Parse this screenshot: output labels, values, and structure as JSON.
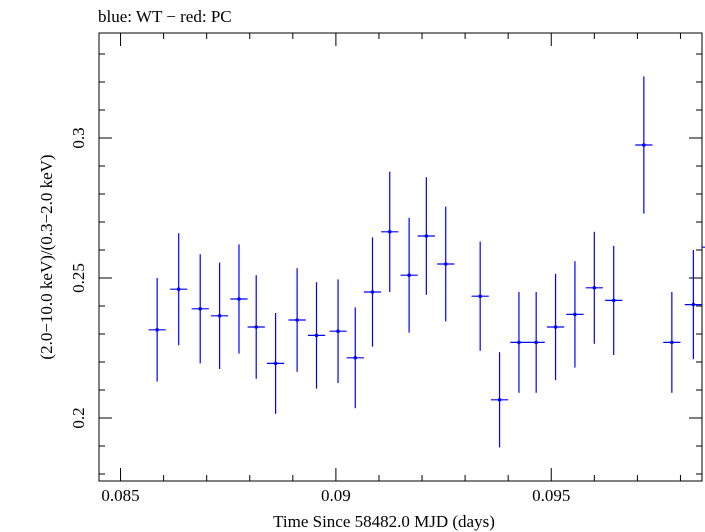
{
  "chart_data": {
    "type": "scatter",
    "title": "blue: WT − red: PC",
    "xlabel": "Time Since 58482.0 MJD (days)",
    "ylabel": "(2.0−10.0 keV)/(0.3−2.0 keV)",
    "xlim": [
      0.0845,
      0.0985
    ],
    "ylim": [
      0.1775,
      0.3375
    ],
    "x_ticks": [
      0.085,
      0.09,
      0.095
    ],
    "x_tick_labels": [
      "0.085",
      "0.09",
      "0.095"
    ],
    "y_ticks": [
      0.2,
      0.25,
      0.3
    ],
    "y_tick_labels": [
      "0.2",
      "0.25",
      "0.3"
    ],
    "grid": false,
    "series": [
      {
        "color": "#0000ff",
        "x": [
          0.08585,
          0.08635,
          0.08685,
          0.0873,
          0.08775,
          0.08815,
          0.0886,
          0.0891,
          0.08955,
          0.09005,
          0.09045,
          0.09085,
          0.09125,
          0.0917,
          0.0921,
          0.09255,
          0.09335,
          0.0938,
          0.09425,
          0.09465,
          0.0951,
          0.09555,
          0.096,
          0.09645,
          0.09715,
          0.0978,
          0.0983,
          0.0988
        ],
        "xerr": [
          0.0002,
          0.0002,
          0.0002,
          0.0002,
          0.0002,
          0.0002,
          0.0002,
          0.0002,
          0.0002,
          0.0002,
          0.0002,
          0.0002,
          0.0002,
          0.0002,
          0.0002,
          0.0002,
          0.0002,
          0.0002,
          0.0002,
          0.0002,
          0.0002,
          0.0002,
          0.0002,
          0.0002,
          0.0002,
          0.0002,
          0.0002,
          0.0003
        ],
        "y": [
          0.2315,
          0.246,
          0.239,
          0.2365,
          0.2425,
          0.2325,
          0.2195,
          0.235,
          0.2295,
          0.231,
          0.2215,
          0.245,
          0.2665,
          0.251,
          0.265,
          0.255,
          0.2435,
          0.2065,
          0.227,
          0.227,
          0.2325,
          0.237,
          0.2465,
          0.242,
          0.2975,
          0.227,
          0.2405,
          0.261
        ],
        "yerr": [
          0.0185,
          0.02,
          0.0195,
          0.019,
          0.0195,
          0.0185,
          0.018,
          0.0185,
          0.019,
          0.0185,
          0.018,
          0.0195,
          0.0215,
          0.0205,
          0.021,
          0.0205,
          0.0195,
          0.017,
          0.018,
          0.018,
          0.019,
          0.019,
          0.02,
          0.0195,
          0.0245,
          0.018,
          0.0195,
          0.0175
        ]
      }
    ]
  }
}
